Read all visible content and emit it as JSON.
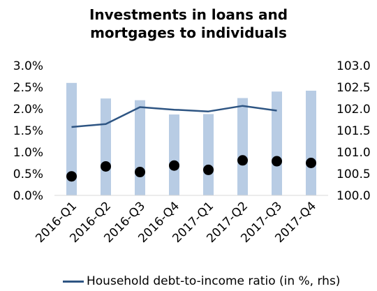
{
  "chart_data": {
    "type": "bar",
    "title_lines": [
      "Investments in loans and",
      "mortgages to individuals"
    ],
    "categories": [
      "2016-Q1",
      "2016-Q2",
      "2016-Q3",
      "2016-Q4",
      "2017-Q1",
      "2017-Q2",
      "2017-Q3",
      "2017-Q4"
    ],
    "left_axis": {
      "ylim": [
        0,
        3.0
      ],
      "ticks": [
        "0.0%",
        "0.5%",
        "1.0%",
        "1.5%",
        "2.0%",
        "2.5%",
        "3.0%"
      ],
      "tick_values": [
        0,
        0.5,
        1.0,
        1.5,
        2.0,
        2.5,
        3.0
      ]
    },
    "right_axis": {
      "ylim": [
        100.0,
        103.0
      ],
      "ticks": [
        "100.0",
        "100.5",
        "101.0",
        "101.5",
        "102.0",
        "102.5",
        "103.0"
      ],
      "tick_values": [
        100.0,
        100.5,
        101.0,
        101.5,
        102.0,
        102.5,
        103.0
      ]
    },
    "series": [
      {
        "kind": "bar",
        "axis": "left",
        "color": "#b8cce4",
        "values": [
          2.6,
          2.24,
          2.2,
          1.87,
          1.88,
          2.25,
          2.4,
          2.42
        ]
      },
      {
        "kind": "dots",
        "axis": "left",
        "color": "#000000",
        "values": [
          0.44,
          0.67,
          0.54,
          0.69,
          0.59,
          0.81,
          0.79,
          0.75
        ]
      },
      {
        "kind": "line",
        "axis": "right",
        "color": "#2e5583",
        "name": "Household debt-to-income ratio (in %, rhs)",
        "values": [
          101.58,
          101.65,
          102.04,
          101.98,
          101.94,
          102.07,
          101.96,
          null
        ]
      }
    ],
    "grid": false
  }
}
